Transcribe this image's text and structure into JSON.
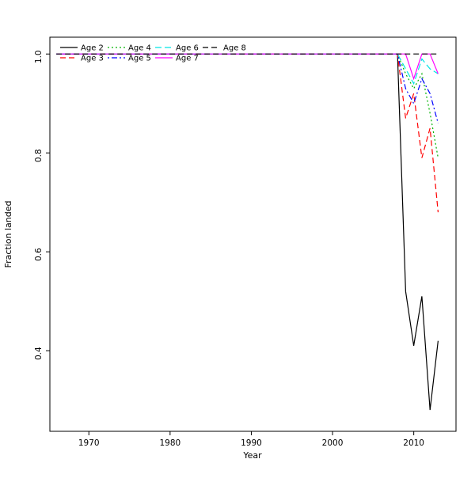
{
  "figure": {
    "background": "#ffffff"
  },
  "chart_data": {
    "type": "line",
    "title": "",
    "xlabel": "Year",
    "ylabel": "Fraction landed",
    "xlim": [
      1965.2,
      2015.2
    ],
    "ylim": [
      0.237,
      1.034
    ],
    "x_ticks": [
      1970,
      1980,
      1990,
      2000,
      2010
    ],
    "y_ticks": [
      0.4,
      0.6,
      0.8,
      1.0
    ],
    "grid": false,
    "legend_position": "top-left",
    "axis_color": "#000000",
    "flat_segment": {
      "x_start": 1966,
      "x_end": 2008,
      "value": 1.0
    },
    "tail_years": [
      2009,
      2010,
      2011,
      2012,
      2013
    ],
    "series": [
      {
        "name": "Age 2",
        "color": "#000000",
        "linetype": "solid",
        "tail_values": [
          0.52,
          0.41,
          0.51,
          0.28,
          0.42
        ]
      },
      {
        "name": "Age 3",
        "color": "#ff0000",
        "linetype": "dashed",
        "tail_values": [
          0.87,
          0.92,
          0.79,
          0.85,
          0.68
        ]
      },
      {
        "name": "Age 4",
        "color": "#00b300",
        "linetype": "dotted",
        "tail_values": [
          0.96,
          0.93,
          0.96,
          0.88,
          0.79
        ]
      },
      {
        "name": "Age 5",
        "color": "#0000ff",
        "linetype": "dotdash",
        "tail_values": [
          0.93,
          0.9,
          0.95,
          0.92,
          0.86
        ]
      },
      {
        "name": "Age 6",
        "color": "#00e5e5",
        "linetype": "longdash",
        "tail_values": [
          0.97,
          0.94,
          0.99,
          0.97,
          0.96
        ]
      },
      {
        "name": "Age 7",
        "color": "#ff00ff",
        "linetype": "solid",
        "tail_values": [
          1.0,
          0.95,
          1.0,
          1.0,
          0.96
        ]
      },
      {
        "name": "Age 8",
        "color": "#000000",
        "linetype": "dashed",
        "tail_values": [
          1.0,
          1.0,
          1.0,
          1.0,
          1.0
        ]
      }
    ]
  }
}
